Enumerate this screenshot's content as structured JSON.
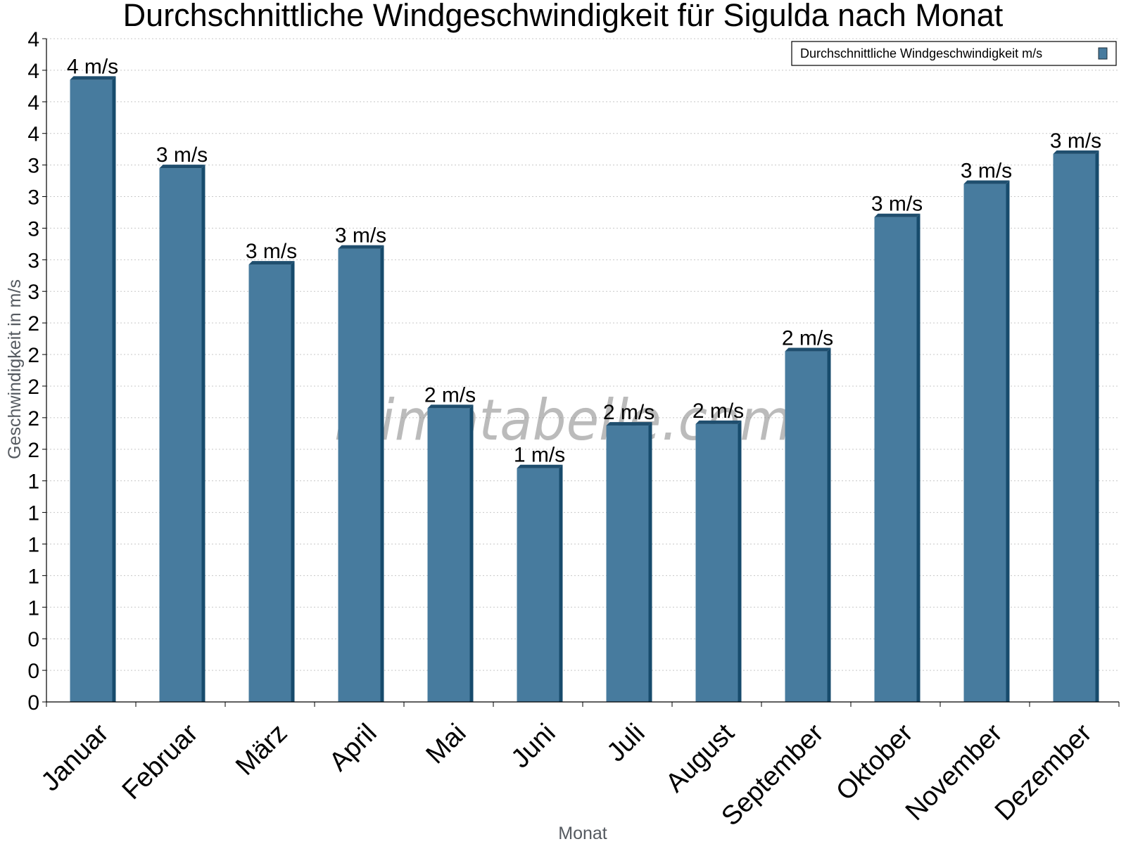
{
  "chart_data": {
    "type": "bar",
    "title": "Durchschnittliche Windgeschwindigkeit für Sigulda nach Monat",
    "xlabel": "Monat",
    "ylabel": "Geschwindigkeit in m/s",
    "categories": [
      "Januar",
      "Februar",
      "März",
      "April",
      "Mai",
      "Juni",
      "Juli",
      "August",
      "September",
      "Oktober",
      "November",
      "Dezember"
    ],
    "series": [
      {
        "name": "Durchschnittliche Windgeschwindigkeit m/s",
        "values": [
          3.94,
          3.38,
          2.77,
          2.87,
          1.86,
          1.48,
          1.75,
          1.76,
          2.22,
          3.07,
          3.28,
          3.47
        ],
        "labels": [
          "4 m/s",
          "3 m/s",
          "3 m/s",
          "3 m/s",
          "2 m/s",
          "1 m/s",
          "2 m/s",
          "2 m/s",
          "2 m/s",
          "3 m/s",
          "3 m/s",
          "3 m/s"
        ],
        "color": "#477b9e"
      }
    ],
    "ylim": [
      0,
      4.2
    ],
    "yticks": [
      0,
      0.2,
      0.4,
      0.6,
      0.8,
      1.0,
      1.2,
      1.4,
      1.6,
      1.8,
      2.0,
      2.2,
      2.4,
      2.6,
      2.8,
      3.0,
      3.2,
      3.4,
      3.6,
      3.8,
      4.0,
      4.2
    ],
    "ytick_labels": [
      "0",
      "0",
      "0",
      "1",
      "1",
      "1",
      "1",
      "1",
      "2",
      "2",
      "2",
      "2",
      "2",
      "3",
      "3",
      "3",
      "3",
      "3",
      "4",
      "4",
      "4",
      "4"
    ],
    "grid": true,
    "legend_position": "top-right",
    "watermark": "klimatabelle.com",
    "colors": {
      "bar": "#477b9e",
      "bar_top": "#1f4e6e",
      "bar_side": "#174b6c",
      "grid": "#c8c8c8"
    }
  }
}
